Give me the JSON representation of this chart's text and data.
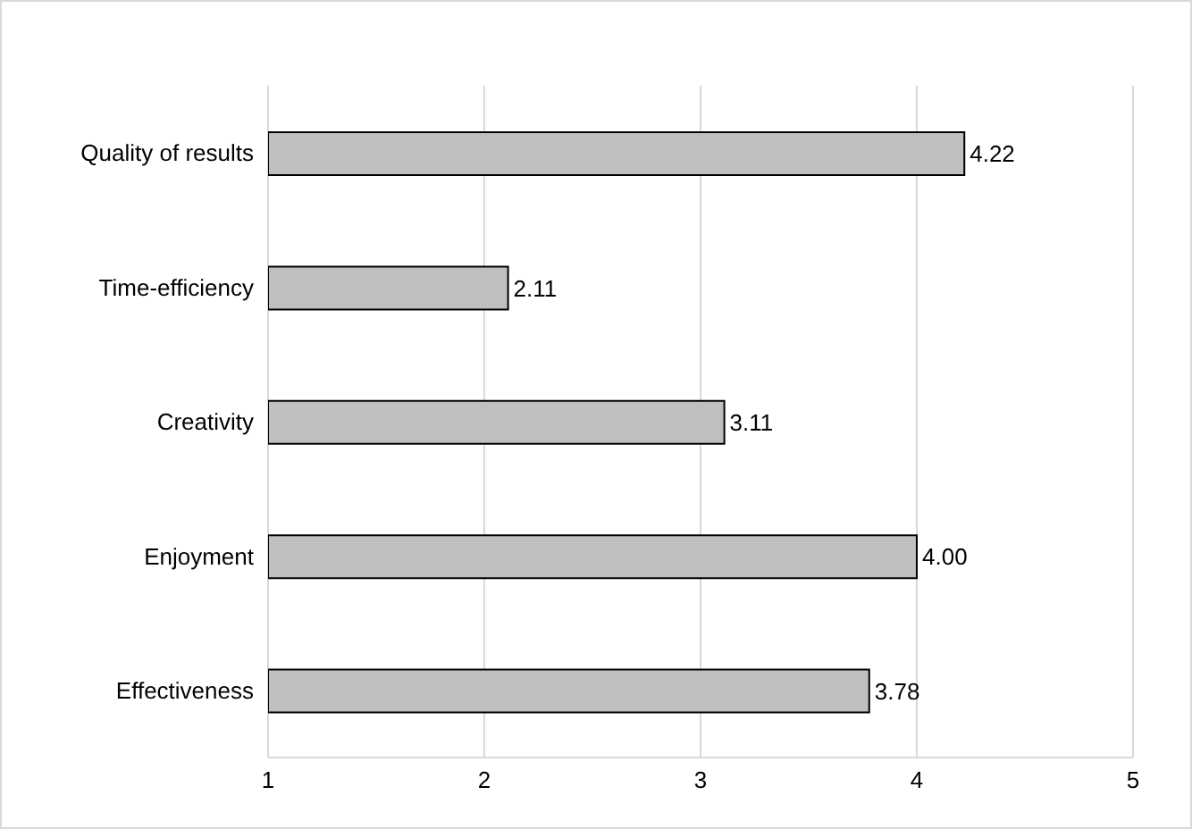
{
  "chart_data": {
    "type": "bar",
    "orientation": "horizontal",
    "categories": [
      "Quality of results",
      "Time-efficiency",
      "Creativity",
      "Enjoyment",
      "Effectiveness"
    ],
    "values": [
      4.22,
      2.11,
      3.11,
      4.0,
      3.78
    ],
    "value_labels": [
      "4.22",
      "2.11",
      "3.11",
      "4.00",
      "3.78"
    ],
    "color": "#bfbfbf",
    "xlim": [
      1,
      5
    ],
    "xticks": [
      1,
      2,
      3,
      4,
      5
    ],
    "grid": "x"
  }
}
